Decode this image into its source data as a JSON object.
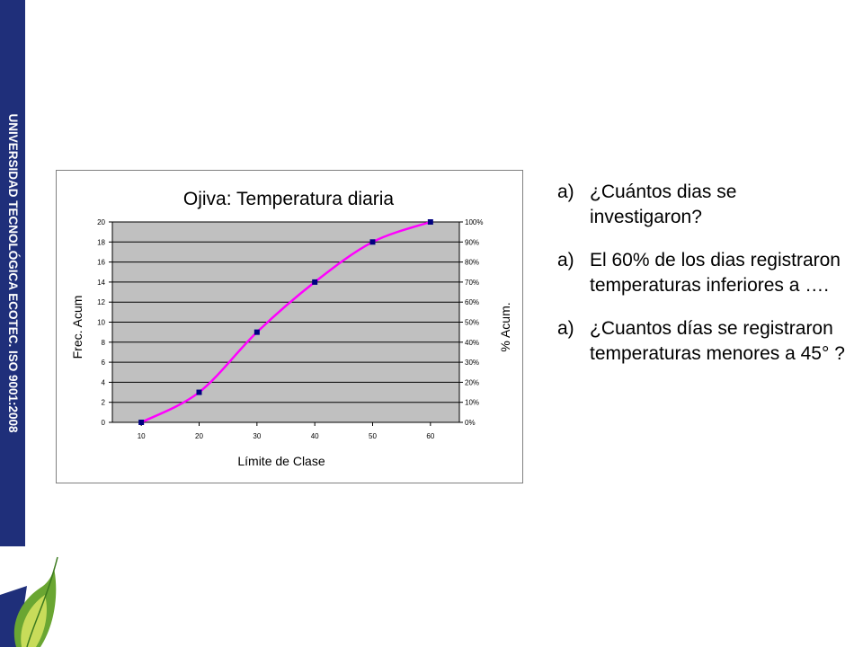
{
  "sidebar": {
    "text": "UNIVERSIDAD TECNOLÓGICA ECOTEC. ISO 9001:2008",
    "color": "#1f2f7a"
  },
  "logo": {
    "name": "ecotec-leaf-logo",
    "colors": [
      "#1f2f7a",
      "#6aa632",
      "#c8dc5a"
    ]
  },
  "questions": [
    {
      "marker": "a)",
      "text": "¿Cuántos dias se investigaron?"
    },
    {
      "marker": "a)",
      "text": "El 60% de los dias registraron temperaturas inferiores a …."
    },
    {
      "marker": "a)",
      "text": "¿Cuantos días se registraron temperaturas menores a 45° ?"
    }
  ],
  "chart_data": {
    "type": "line",
    "title": "Ojiva: Temperatura diaria",
    "xlabel": "Límite de Clase",
    "ylabel": "Frec. Acum",
    "y2label": "% Acum.",
    "x": [
      10,
      20,
      30,
      40,
      50,
      60
    ],
    "series": [
      {
        "values": [
          0,
          3,
          9,
          14,
          18,
          20
        ]
      }
    ],
    "ylim": [
      0,
      20
    ],
    "yticks": [
      "0",
      "2",
      "4",
      "6",
      "8",
      "10",
      "12",
      "14",
      "16",
      "18",
      "20"
    ],
    "y2ticks": [
      "0%",
      "10%",
      "20%",
      "30%",
      "40%",
      "50%",
      "60%",
      "70%",
      "80%",
      "90%",
      "100%"
    ],
    "xticks": [
      "10",
      "20",
      "30",
      "40",
      "50",
      "60"
    ],
    "grid": true,
    "legend": "none",
    "colors": {
      "plot_bg": "#c0c0c0",
      "line": "#ff00ff",
      "marker": "#000080",
      "grid": "#000000"
    }
  }
}
